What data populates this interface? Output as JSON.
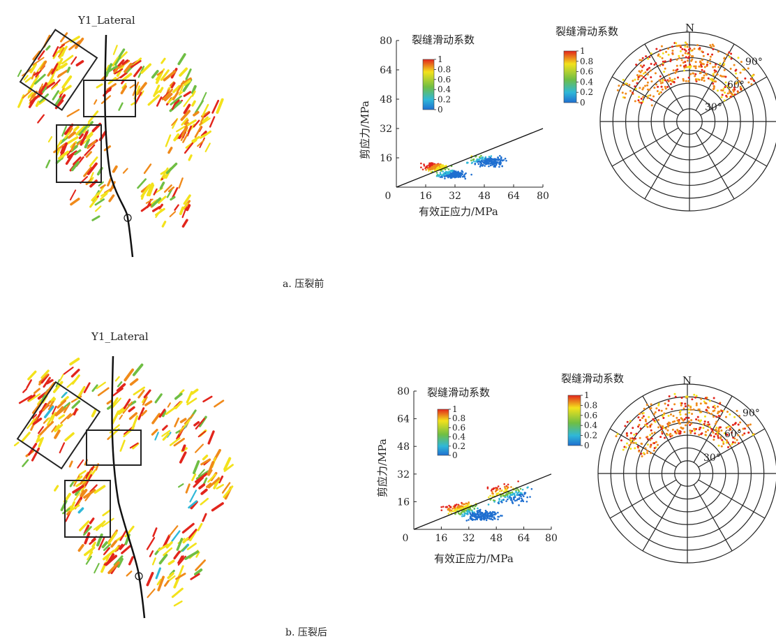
{
  "figure": {
    "panels": [
      {
        "id": "a",
        "caption": "a. 压裂前",
        "map": {
          "well_label": "Y1_Lateral"
        }
      },
      {
        "id": "b",
        "caption": "b. 压裂后",
        "map": {
          "well_label": "Y1_Lateral"
        }
      }
    ]
  },
  "colors": {
    "red": "#e2251c",
    "orange": "#f08a1a",
    "yellow": "#f3e21c",
    "green": "#6fbe44",
    "cyan": "#2fb8d8",
    "blue": "#1f6fd0"
  },
  "chart_data": [
    {
      "type": "scatter",
      "panel": "a",
      "title": "裂缝滑动系数",
      "xlabel": "有效正应力/MPa",
      "ylabel": "剪应力/MPa",
      "xlim": [
        0,
        80
      ],
      "ylim": [
        0,
        80
      ],
      "x_ticks": [
        "0",
        "16",
        "32",
        "48",
        "64",
        "80"
      ],
      "y_ticks": [
        "16",
        "32",
        "48",
        "64",
        "80"
      ],
      "colorbar_ticks": [
        "1",
        "0.8",
        "0.6",
        "0.4",
        "0.2",
        "0"
      ],
      "colorbar_range": [
        0,
        1
      ],
      "failure_line": {
        "x": [
          0,
          80
        ],
        "y": [
          0,
          32
        ]
      },
      "clusters": [
        {
          "x_center": 22,
          "y_center": 11,
          "spread_x": 10,
          "spread_y": 3,
          "value": 0.9
        },
        {
          "x_center": 30,
          "y_center": 7,
          "spread_x": 12,
          "spread_y": 3,
          "value": 0.6
        },
        {
          "x_center": 50,
          "y_center": 14,
          "spread_x": 14,
          "spread_y": 4,
          "value": 0.7
        }
      ]
    },
    {
      "type": "polar",
      "panel": "a",
      "title": "裂缝滑动系数",
      "north_label": "N",
      "dip_labels": [
        "30°",
        "60°",
        "90°"
      ],
      "colorbar_ticks": [
        "1",
        "0.8",
        "0.6",
        "0.4",
        "0.2",
        "0"
      ],
      "colorbar_range": [
        0,
        1
      ],
      "rings": 7,
      "spokes": 12,
      "point_cloud": {
        "azimuth_range_deg": [
          -70,
          60
        ],
        "dip_range_deg": [
          55,
          90
        ],
        "value": 0.8
      }
    },
    {
      "type": "scatter",
      "panel": "b",
      "title": "裂缝滑动系数",
      "xlabel": "有效正应力/MPa",
      "ylabel": "剪应力/MPa",
      "xlim": [
        0,
        80
      ],
      "ylim": [
        0,
        80
      ],
      "x_ticks": [
        "0",
        "16",
        "32",
        "48",
        "64",
        "80"
      ],
      "y_ticks": [
        "16",
        "32",
        "48",
        "64",
        "80"
      ],
      "colorbar_ticks": [
        "1",
        "0.8",
        "0.6",
        "0.4",
        "0.2",
        "0"
      ],
      "colorbar_range": [
        0,
        1
      ],
      "failure_line": {
        "x": [
          0,
          80
        ],
        "y": [
          0,
          32
        ]
      },
      "clusters": [
        {
          "x_center": 28,
          "y_center": 12,
          "spread_x": 14,
          "spread_y": 5,
          "value": 0.9
        },
        {
          "x_center": 40,
          "y_center": 8,
          "spread_x": 14,
          "spread_y": 4,
          "value": 0.6
        },
        {
          "x_center": 55,
          "y_center": 20,
          "spread_x": 16,
          "spread_y": 8,
          "value": 0.95
        }
      ]
    },
    {
      "type": "polar",
      "panel": "b",
      "title": "裂缝滑动系数",
      "north_label": "N",
      "dip_labels": [
        "30°",
        "60°",
        "90°"
      ],
      "colorbar_ticks": [
        "1",
        "0.8",
        "0.6",
        "0.4",
        "0.2",
        "0"
      ],
      "colorbar_range": [
        0,
        1
      ],
      "rings": 7,
      "spokes": 12,
      "point_cloud": {
        "azimuth_range_deg": [
          -70,
          60
        ],
        "dip_range_deg": [
          55,
          90
        ],
        "value": 0.8
      }
    }
  ]
}
